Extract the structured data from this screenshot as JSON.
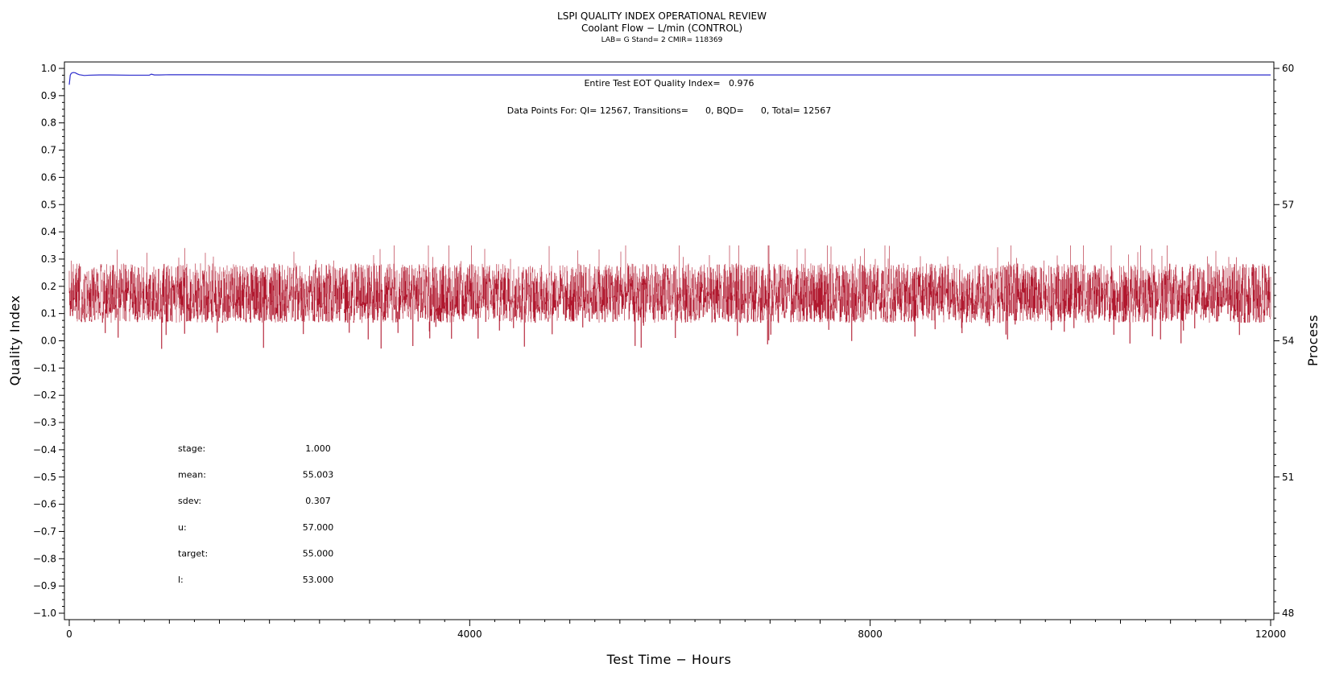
{
  "chart_data": {
    "type": "line",
    "title": "LSPI QUALITY INDEX OPERATIONAL REVIEW",
    "subtitle": "Coolant Flow − L/min (CONTROL)",
    "subtitle2": "LAB= G Stand= 2 CMIR= 118369",
    "xlabel": "Test Time − Hours",
    "ylabel": "Quality Index",
    "y2label": "Process",
    "xlim": [
      0,
      12000
    ],
    "ylim": [
      -1.0,
      1.0
    ],
    "y2lim": [
      48,
      60
    ],
    "xticks": [
      "0",
      "4000",
      "8000",
      "12000"
    ],
    "xtick_values": [
      0,
      4000,
      8000,
      12000
    ],
    "yticks": [
      "1.0",
      "0.9",
      "0.8",
      "0.7",
      "0.6",
      "0.5",
      "0.4",
      "0.3",
      "0.2",
      "0.1",
      "0.0",
      "−0.1",
      "−0.2",
      "−0.3",
      "−0.4",
      "−0.5",
      "−0.6",
      "−0.7",
      "−0.8",
      "−0.9",
      "−1.0"
    ],
    "ytick_values": [
      1.0,
      0.9,
      0.8,
      0.7,
      0.6,
      0.5,
      0.4,
      0.3,
      0.2,
      0.1,
      0.0,
      -0.1,
      -0.2,
      -0.3,
      -0.4,
      -0.5,
      -0.6,
      -0.7,
      -0.8,
      -0.9,
      -1.0
    ],
    "y2ticks": [
      "60",
      "57",
      "54",
      "51",
      "48"
    ],
    "y2tick_values": [
      60,
      57,
      54,
      51,
      48
    ],
    "annotations": {
      "eot_quality": "Entire Test EOT Quality Index=   0.976",
      "data_points": "Data Points For: QI= 12567, Transitions=      0, BQD=      0, Total= 12567"
    },
    "stats": [
      {
        "label": "stage:",
        "value": "1.000"
      },
      {
        "label": "mean:",
        "value": "55.003"
      },
      {
        "label": "sdev:",
        "value": "0.307"
      },
      {
        "label": "u:",
        "value": "57.000"
      },
      {
        "label": "target:",
        "value": "55.000"
      },
      {
        "label": "l:",
        "value": "53.000"
      }
    ],
    "series": [
      {
        "axis": "left",
        "color": "#2b2bcc",
        "x": [
          0,
          10,
          20,
          40,
          60,
          80,
          100,
          150,
          200,
          300,
          400,
          600,
          800,
          820,
          850,
          900,
          1000,
          2000,
          4000,
          6000,
          8000,
          10000,
          12000
        ],
        "y": [
          0.94,
          0.975,
          0.982,
          0.985,
          0.984,
          0.98,
          0.977,
          0.974,
          0.975,
          0.976,
          0.976,
          0.975,
          0.975,
          0.979,
          0.976,
          0.976,
          0.977,
          0.976,
          0.976,
          0.976,
          0.976,
          0.976,
          0.976
        ]
      },
      {
        "axis": "right",
        "color": "#b0182e",
        "x_range": [
          0,
          12000
        ],
        "mean": 55.003,
        "sdev": 0.307,
        "count": 12567,
        "approx_band_qi": [
          0.06,
          0.29
        ],
        "min_qi": -0.05,
        "max_qi": 0.35
      }
    ]
  }
}
